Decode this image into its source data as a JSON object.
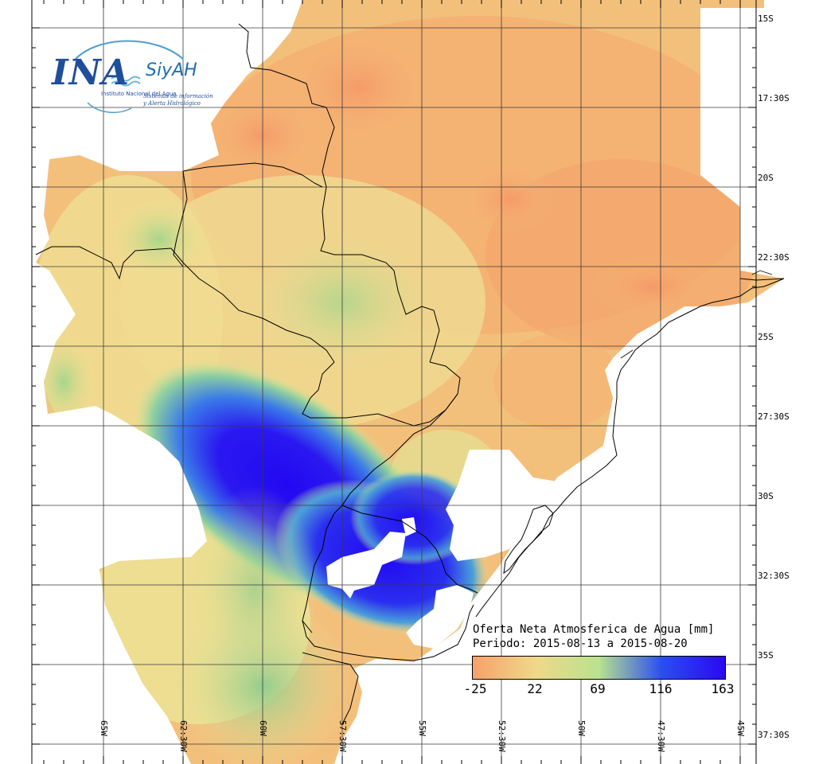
{
  "logo": {
    "main": "INA",
    "secondary": "SiyAH",
    "institute": "Instituto Nacional del Agua",
    "subtitle_line1": "Sistemas de información",
    "subtitle_line2": "y Alerta Hidrológico"
  },
  "legend": {
    "title": "Oferta Neta Atmosferica de Agua [mm]",
    "period": "Periodo: 2015-08-13 a 2015-08-20",
    "ticks": [
      "-25",
      "22",
      "69",
      "116",
      "163"
    ],
    "colors": [
      "#f6a16b",
      "#f0d88a",
      "#b9e28f",
      "#2a4ef0",
      "#2b08f2"
    ]
  },
  "axes": {
    "latitude_labels": [
      "15S",
      "17:30S",
      "20S",
      "22:30S",
      "25S",
      "27:30S",
      "30S",
      "32:30S",
      "35S",
      "37:30S"
    ],
    "longitude_labels": [
      "65W",
      "62:30W",
      "60W",
      "57:30W",
      "55W",
      "52:30W",
      "50W",
      "47:30W",
      "45W"
    ]
  },
  "field_colors": {
    "dry": "#f2b072",
    "neutral": "#f1dc8e",
    "moist": "#9fd38a",
    "wet": "#3561f0",
    "max": "#1f0bf2",
    "no_data": "#ffffff"
  }
}
